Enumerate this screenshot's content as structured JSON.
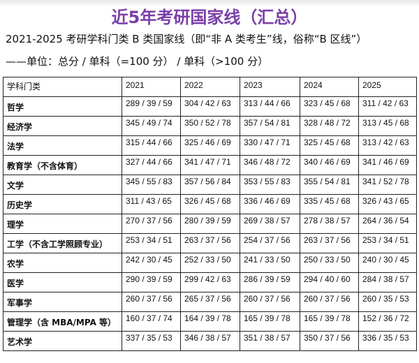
{
  "title": "近5年考研国家线（汇总）",
  "subtitle": "2021-2025 考研学科门类 B 类国家线（即“非 A 类考生”线，俗称“B 区线”）",
  "units": "——单位：总分 / 单科（=100 分） / 单科（>100 分）",
  "table": {
    "headers": [
      "学科门类",
      "2021",
      "2022",
      "2023",
      "2024",
      "2025"
    ],
    "rows": [
      [
        "哲学",
        "289 / 39 / 59",
        "304 / 42 / 63",
        "313 / 44 / 66",
        "323 / 45 / 68",
        "311 / 42 / 63"
      ],
      [
        "经济学",
        "345 / 49 / 74",
        "350 / 52 / 78",
        "357 / 54 / 81",
        "328 / 48 / 72",
        "313 / 45 / 68"
      ],
      [
        "法学",
        "315 / 44 / 66",
        "325 / 46 / 69",
        "330 / 47 / 71",
        "325 / 45 / 68",
        "313 / 42 / 63"
      ],
      [
        "教育学（不含体育）",
        "327 / 44 / 66",
        "341 / 47 / 71",
        "346 / 48 / 72",
        "340 / 46 / 69",
        "341 / 46 / 69"
      ],
      [
        "文学",
        "345 / 55 / 83",
        "357 / 56 / 84",
        "353 / 55 / 83",
        "355 / 54 / 81",
        "341 / 52 / 78"
      ],
      [
        "历史学",
        "311 / 43 / 65",
        "326 / 45 / 68",
        "336 / 46 / 69",
        "335 / 45 / 68",
        "326 / 43 / 65"
      ],
      [
        "理学",
        "270 / 37 / 56",
        "280 / 39 / 59",
        "269 / 38 / 57",
        "278 / 38 / 57",
        "264 / 36 / 54"
      ],
      [
        "工学（不含工学照顾专业）",
        "253 / 34 / 51",
        "263 / 37 / 56",
        "254 / 37 / 56",
        "263 / 37 / 56",
        "253 / 34 / 51"
      ],
      [
        "农学",
        "242 / 30 / 45",
        "252 / 33 / 50",
        "241 / 33 / 50",
        "250 / 33 / 50",
        "240 / 30 / 45"
      ],
      [
        "医学",
        "290 / 39 / 59",
        "299 / 42 / 63",
        "286 / 39 / 59",
        "294 / 40 / 60",
        "284 / 38 / 57"
      ],
      [
        "军事学",
        "260 / 37 / 56",
        "265 / 37 / 56",
        "260 / 37 / 56",
        "260 / 37 / 56",
        "260 / 35 / 53"
      ],
      [
        "管理学（含 MBA/MPA 等）",
        "160 / 37 / 74",
        "164 / 39 / 78",
        "165 / 39 / 78",
        "165 / 39 / 78",
        "152 / 36 / 72"
      ],
      [
        "艺术学",
        "337 / 35 / 53",
        "346 / 38 / 57",
        "351 / 38 / 57",
        "350 / 37 / 56",
        "336 / 35 / 53"
      ]
    ]
  },
  "colors": {
    "title": "#7a3fa8"
  }
}
